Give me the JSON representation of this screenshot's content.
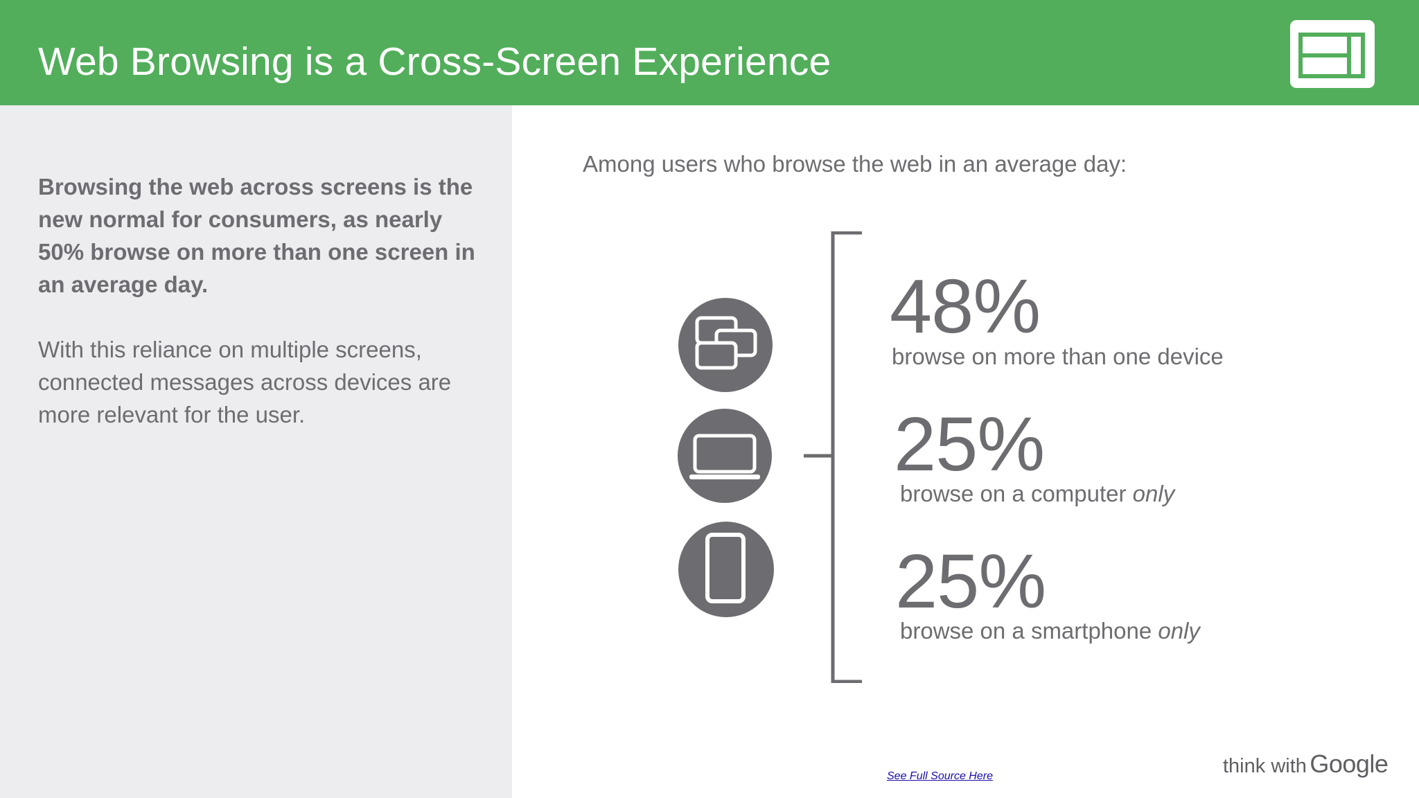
{
  "header": {
    "title": "Web Browsing is a Cross-Screen Experience",
    "icon": "slide-layout-icon",
    "background_color": "#52ae5b"
  },
  "left_panel": {
    "bold_text": "Browsing the web across screens is the new normal for consumers, as nearly 50% browse on more than one screen in an average day.",
    "body_text": "With this reliance on multiple screens, connected messages across devices are more relevant for the user."
  },
  "main": {
    "intro": "Among users who browse the web in an average day:",
    "stats": [
      {
        "value": "48%",
        "label": "browse on more than one device",
        "label_emphasis": "",
        "icon": "multi-screen-icon"
      },
      {
        "value": "25%",
        "label": "browse on a computer ",
        "label_emphasis": "only",
        "icon": "laptop-icon"
      },
      {
        "value": "25%",
        "label": "browse on a smartphone ",
        "label_emphasis": "only",
        "icon": "smartphone-icon"
      }
    ]
  },
  "footer": {
    "source_link": "See Full Source Here",
    "brand_prefix": "think with",
    "brand_name": "Google"
  }
}
